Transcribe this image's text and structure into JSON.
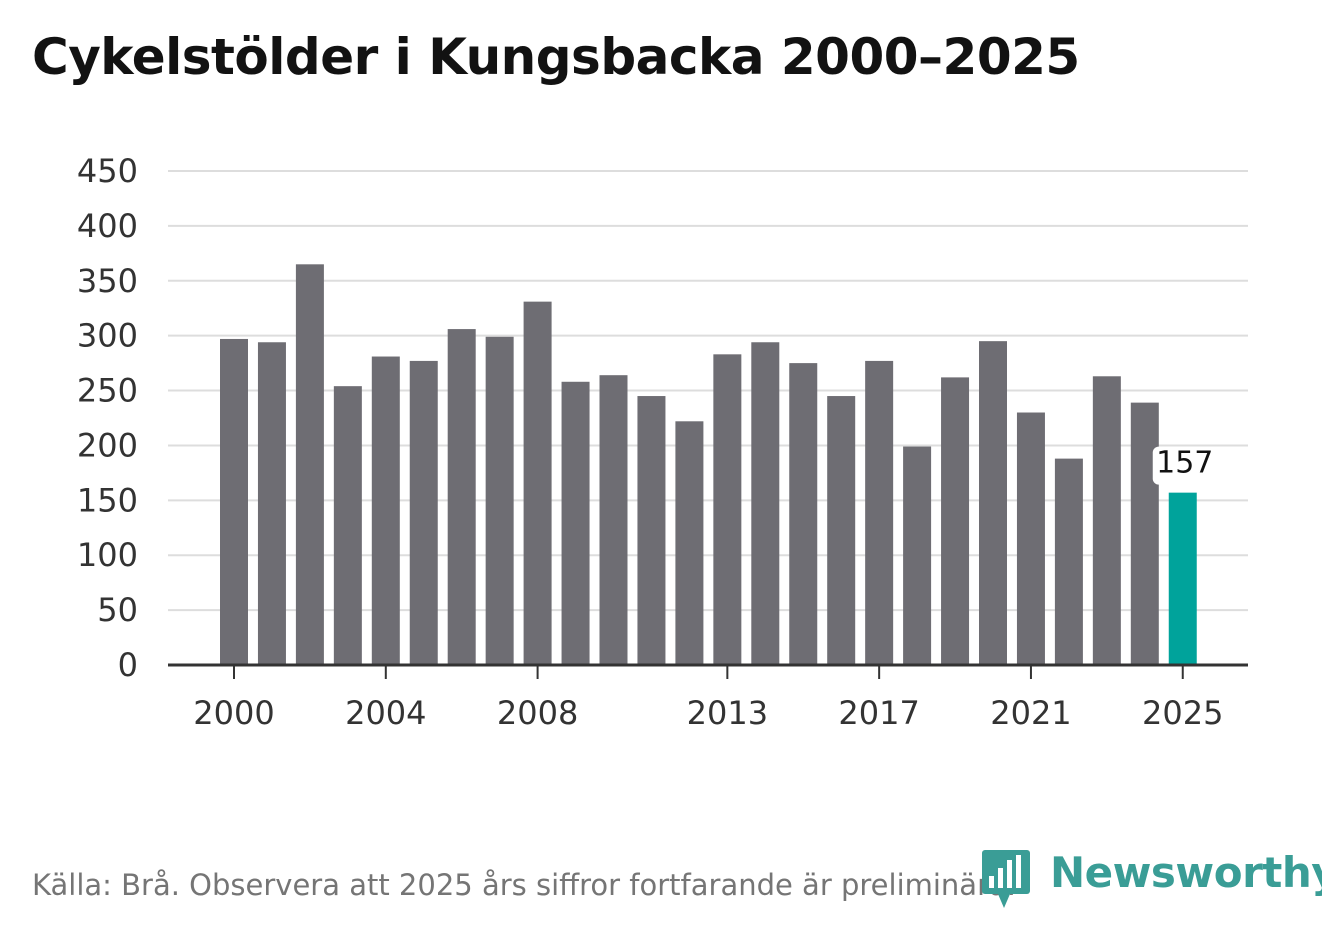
{
  "chart_data": {
    "type": "bar",
    "title": "Cykelstölder i Kungsbacka 2000–2025",
    "xlabel": "",
    "ylabel": "",
    "ylim": [
      0,
      450
    ],
    "yticks": [
      0,
      50,
      100,
      150,
      200,
      250,
      300,
      350,
      400,
      450
    ],
    "xtick_labels": [
      "2000",
      "2004",
      "2008",
      "2013",
      "2017",
      "2021",
      "2025"
    ],
    "categories": [
      "2000",
      "2001",
      "2002",
      "2003",
      "2004",
      "2005",
      "2006",
      "2007",
      "2008",
      "2009",
      "2010",
      "2011",
      "2012",
      "2013",
      "2014",
      "2015",
      "2016",
      "2017",
      "2018",
      "2019",
      "2020",
      "2021",
      "2022",
      "2023",
      "2024",
      "2025"
    ],
    "values": [
      297,
      294,
      365,
      254,
      281,
      277,
      306,
      299,
      331,
      258,
      264,
      245,
      222,
      283,
      294,
      275,
      245,
      277,
      199,
      262,
      295,
      230,
      188,
      263,
      239,
      157
    ],
    "highlight_index": 25,
    "highlight_label": "157",
    "colors": {
      "bar": "#6e6d73",
      "highlight": "#00a39b",
      "grid": "#dddddd",
      "axis": "#333333"
    }
  },
  "footer": {
    "source": "Källa: Brå. Observera att 2025 års siffror fortfarande är preliminära."
  },
  "brand": {
    "name": "Newsworthy",
    "color": "#3a9d96"
  }
}
